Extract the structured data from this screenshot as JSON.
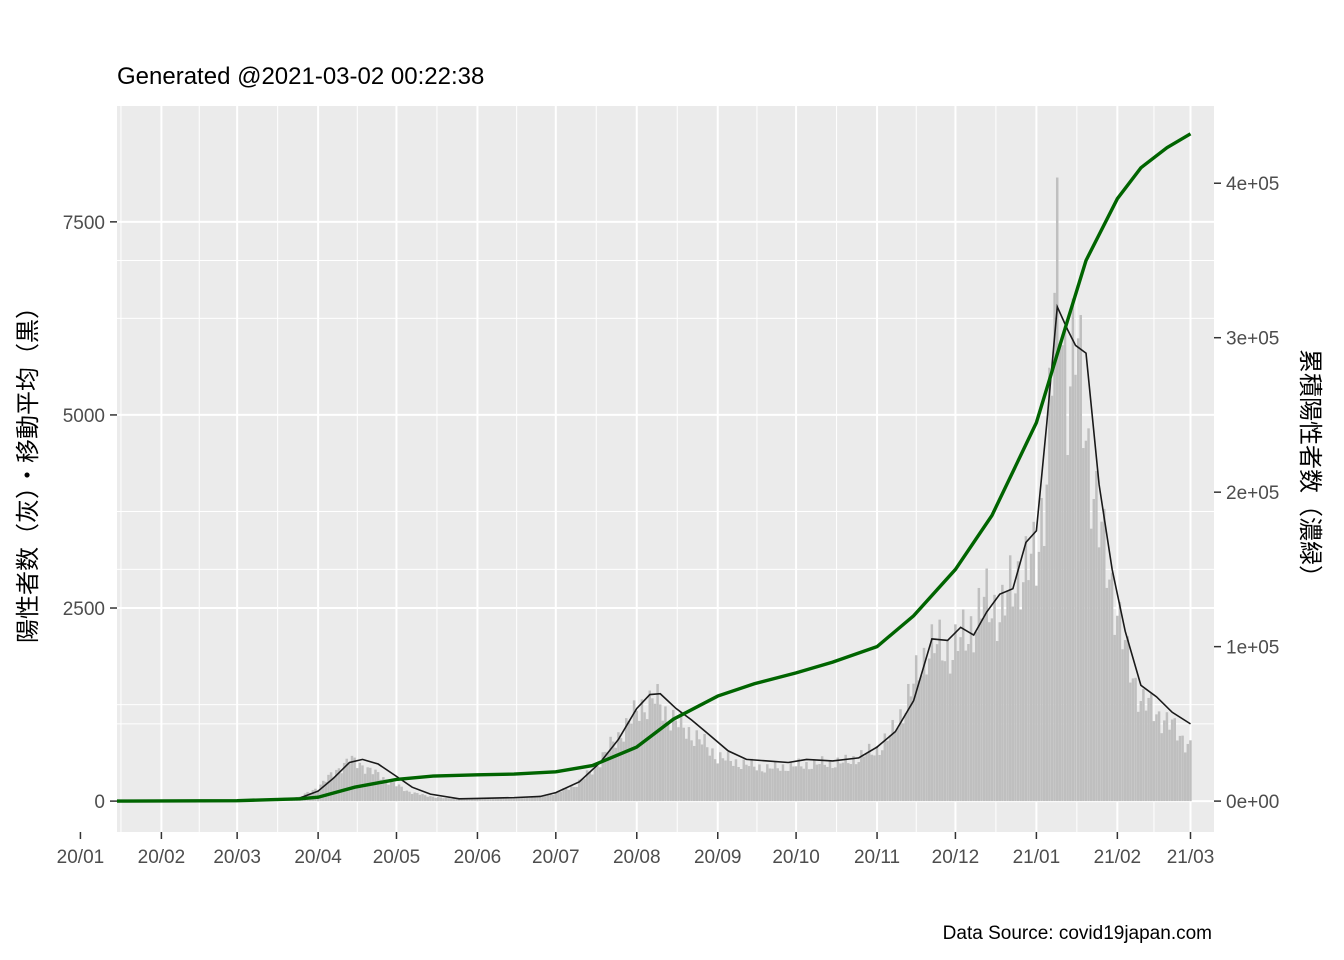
{
  "chart_data": {
    "type": "bar",
    "title": "Generated @2021-03-02 00:22:38",
    "caption": "Data Source: covid19japan.com",
    "ylabel_left": "陽性者数（灰）・移動平均（黒）",
    "ylabel_right": "累積陽性者数（濃緑）",
    "x_range": [
      "2020-01-15",
      "2021-03-10"
    ],
    "y_left_range": [
      -400,
      9000
    ],
    "y_right_range": [
      -20000,
      450000
    ],
    "x_ticks": [
      {
        "date": "2020-01-01",
        "label": "20/01"
      },
      {
        "date": "2020-02-01",
        "label": "20/02"
      },
      {
        "date": "2020-03-01",
        "label": "20/03"
      },
      {
        "date": "2020-04-01",
        "label": "20/04"
      },
      {
        "date": "2020-05-01",
        "label": "20/05"
      },
      {
        "date": "2020-06-01",
        "label": "20/06"
      },
      {
        "date": "2020-07-01",
        "label": "20/07"
      },
      {
        "date": "2020-08-01",
        "label": "20/08"
      },
      {
        "date": "2020-09-01",
        "label": "20/09"
      },
      {
        "date": "2020-10-01",
        "label": "20/10"
      },
      {
        "date": "2020-11-01",
        "label": "20/11"
      },
      {
        "date": "2020-12-01",
        "label": "20/12"
      },
      {
        "date": "2021-01-01",
        "label": "21/01"
      },
      {
        "date": "2021-02-01",
        "label": "21/02"
      },
      {
        "date": "2021-03-01",
        "label": "21/03"
      }
    ],
    "y_left_ticks": [
      {
        "value": 0,
        "label": "0"
      },
      {
        "value": 2500,
        "label": "2500"
      },
      {
        "value": 5000,
        "label": "5000"
      },
      {
        "value": 7500,
        "label": "7500"
      }
    ],
    "y_right_ticks": [
      {
        "value": 0,
        "label": "0e+00"
      },
      {
        "value": 100000,
        "label": "1e+05"
      },
      {
        "value": 200000,
        "label": "2e+05"
      },
      {
        "value": 300000,
        "label": "3e+05"
      },
      {
        "value": 400000,
        "label": "4e+05"
      }
    ],
    "series": [
      {
        "type": "bar",
        "axis": "left",
        "color": "#bfbfbf",
        "points": [
          [
            "2020-01-15",
            1
          ],
          [
            "2020-02-01",
            3
          ],
          [
            "2020-02-15",
            5
          ],
          [
            "2020-03-01",
            15
          ],
          [
            "2020-03-15",
            30
          ],
          [
            "2020-03-25",
            60
          ],
          [
            "2020-04-01",
            200
          ],
          [
            "2020-04-08",
            450
          ],
          [
            "2020-04-13",
            600
          ],
          [
            "2020-04-17",
            550
          ],
          [
            "2020-04-21",
            450
          ],
          [
            "2020-04-28",
            300
          ],
          [
            "2020-05-05",
            150
          ],
          [
            "2020-05-12",
            80
          ],
          [
            "2020-05-20",
            40
          ],
          [
            "2020-06-01",
            35
          ],
          [
            "2020-06-15",
            50
          ],
          [
            "2020-06-25",
            70
          ],
          [
            "2020-07-01",
            120
          ],
          [
            "2020-07-08",
            220
          ],
          [
            "2020-07-15",
            450
          ],
          [
            "2020-07-22",
            800
          ],
          [
            "2020-07-28",
            1100
          ],
          [
            "2020-08-03",
            1400
          ],
          [
            "2020-08-08",
            1500
          ],
          [
            "2020-08-12",
            1300
          ],
          [
            "2020-08-18",
            1100
          ],
          [
            "2020-08-25",
            900
          ],
          [
            "2020-09-01",
            650
          ],
          [
            "2020-09-10",
            550
          ],
          [
            "2020-09-20",
            480
          ],
          [
            "2020-10-01",
            520
          ],
          [
            "2020-10-10",
            550
          ],
          [
            "2020-10-20",
            570
          ],
          [
            "2020-11-01",
            750
          ],
          [
            "2020-11-07",
            1000
          ],
          [
            "2020-11-14",
            1600
          ],
          [
            "2020-11-21",
            2300
          ],
          [
            "2020-11-28",
            2200
          ],
          [
            "2020-12-05",
            2400
          ],
          [
            "2020-12-12",
            2900
          ],
          [
            "2020-12-19",
            2800
          ],
          [
            "2020-12-26",
            3400
          ],
          [
            "2021-01-01",
            3500
          ],
          [
            "2021-01-05",
            4900
          ],
          [
            "2021-01-09",
            7800
          ],
          [
            "2021-01-13",
            6200
          ],
          [
            "2021-01-16",
            6700
          ],
          [
            "2021-01-20",
            5500
          ],
          [
            "2021-01-25",
            4000
          ],
          [
            "2021-01-30",
            3200
          ],
          [
            "2021-02-04",
            2200
          ],
          [
            "2021-02-10",
            1500
          ],
          [
            "2021-02-16",
            1300
          ],
          [
            "2021-02-22",
            1100
          ],
          [
            "2021-03-01",
            800
          ]
        ]
      },
      {
        "type": "line",
        "axis": "left",
        "color": "#1a1a1a",
        "points": [
          [
            "2020-01-15",
            0
          ],
          [
            "2020-02-15",
            2
          ],
          [
            "2020-03-01",
            8
          ],
          [
            "2020-03-15",
            25
          ],
          [
            "2020-03-25",
            40
          ],
          [
            "2020-04-01",
            130
          ],
          [
            "2020-04-07",
            300
          ],
          [
            "2020-04-13",
            500
          ],
          [
            "2020-04-18",
            540
          ],
          [
            "2020-04-24",
            480
          ],
          [
            "2020-05-01",
            320
          ],
          [
            "2020-05-07",
            180
          ],
          [
            "2020-05-14",
            90
          ],
          [
            "2020-05-25",
            30
          ],
          [
            "2020-06-01",
            35
          ],
          [
            "2020-06-15",
            45
          ],
          [
            "2020-06-25",
            60
          ],
          [
            "2020-07-01",
            110
          ],
          [
            "2020-07-10",
            250
          ],
          [
            "2020-07-18",
            500
          ],
          [
            "2020-07-25",
            800
          ],
          [
            "2020-08-01",
            1200
          ],
          [
            "2020-08-06",
            1380
          ],
          [
            "2020-08-10",
            1390
          ],
          [
            "2020-08-16",
            1200
          ],
          [
            "2020-08-22",
            1050
          ],
          [
            "2020-08-28",
            880
          ],
          [
            "2020-09-05",
            650
          ],
          [
            "2020-09-12",
            540
          ],
          [
            "2020-09-20",
            520
          ],
          [
            "2020-09-28",
            500
          ],
          [
            "2020-10-05",
            540
          ],
          [
            "2020-10-15",
            520
          ],
          [
            "2020-10-25",
            560
          ],
          [
            "2020-11-01",
            700
          ],
          [
            "2020-11-08",
            900
          ],
          [
            "2020-11-15",
            1300
          ],
          [
            "2020-11-22",
            2100
          ],
          [
            "2020-11-28",
            2080
          ],
          [
            "2020-12-03",
            2250
          ],
          [
            "2020-12-08",
            2150
          ],
          [
            "2020-12-13",
            2450
          ],
          [
            "2020-12-18",
            2680
          ],
          [
            "2020-12-23",
            2750
          ],
          [
            "2020-12-28",
            3350
          ],
          [
            "2021-01-01",
            3500
          ],
          [
            "2021-01-05",
            4900
          ],
          [
            "2021-01-09",
            6400
          ],
          [
            "2021-01-13",
            6100
          ],
          [
            "2021-01-16",
            5900
          ],
          [
            "2021-01-20",
            5800
          ],
          [
            "2021-01-25",
            4100
          ],
          [
            "2021-01-30",
            3000
          ],
          [
            "2021-02-04",
            2200
          ],
          [
            "2021-02-10",
            1500
          ],
          [
            "2021-02-16",
            1350
          ],
          [
            "2021-02-22",
            1150
          ],
          [
            "2021-03-01",
            1000
          ]
        ]
      },
      {
        "type": "line",
        "axis": "right",
        "color": "#006400",
        "points": [
          [
            "2020-01-15",
            0
          ],
          [
            "2020-03-01",
            300
          ],
          [
            "2020-03-25",
            1500
          ],
          [
            "2020-04-01",
            2500
          ],
          [
            "2020-04-15",
            9000
          ],
          [
            "2020-05-01",
            14000
          ],
          [
            "2020-05-15",
            16200
          ],
          [
            "2020-06-01",
            17000
          ],
          [
            "2020-06-15",
            17500
          ],
          [
            "2020-07-01",
            19000
          ],
          [
            "2020-07-15",
            23000
          ],
          [
            "2020-08-01",
            35000
          ],
          [
            "2020-08-15",
            53000
          ],
          [
            "2020-09-01",
            68000
          ],
          [
            "2020-09-15",
            76000
          ],
          [
            "2020-10-01",
            83000
          ],
          [
            "2020-10-15",
            90000
          ],
          [
            "2020-11-01",
            100000
          ],
          [
            "2020-11-15",
            120000
          ],
          [
            "2020-12-01",
            150000
          ],
          [
            "2020-12-15",
            185000
          ],
          [
            "2021-01-01",
            245000
          ],
          [
            "2021-01-10",
            295000
          ],
          [
            "2021-01-20",
            350000
          ],
          [
            "2021-02-01",
            390000
          ],
          [
            "2021-02-10",
            410000
          ],
          [
            "2021-02-20",
            423000
          ],
          [
            "2021-03-01",
            432000
          ]
        ]
      }
    ],
    "grid": true,
    "legend": "none"
  }
}
